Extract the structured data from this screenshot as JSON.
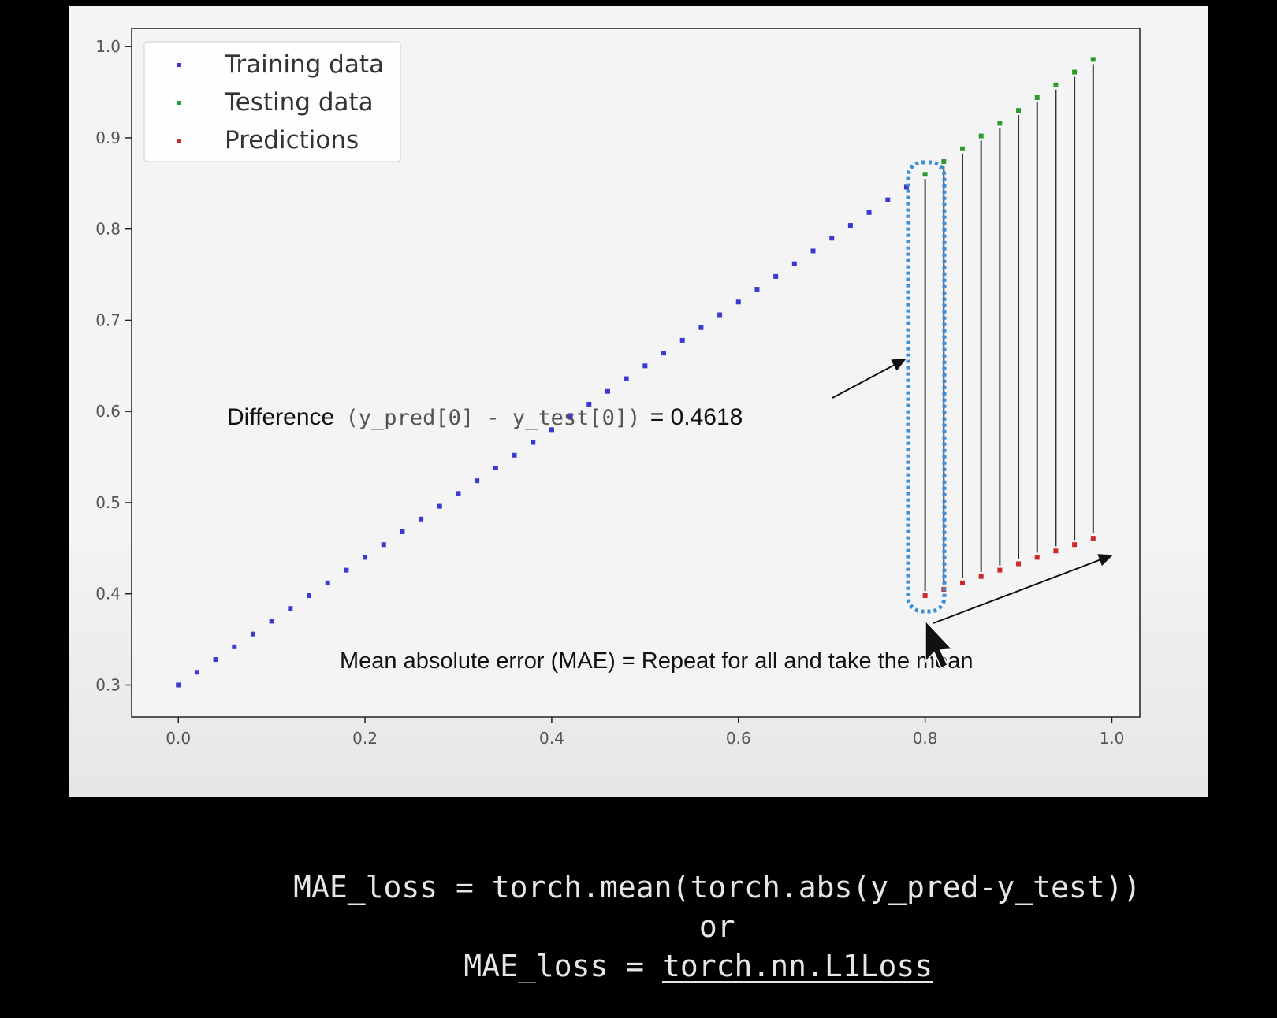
{
  "chart_data": {
    "type": "scatter",
    "xlim": [
      -0.05,
      1.03
    ],
    "ylim": [
      0.265,
      1.02
    ],
    "x_ticks": [
      "0.0",
      "0.2",
      "0.4",
      "0.6",
      "0.8",
      "1.0"
    ],
    "y_ticks": [
      "0.3",
      "0.4",
      "0.5",
      "0.6",
      "0.7",
      "0.8",
      "0.9",
      "1.0"
    ],
    "grid": false,
    "legend_position": "upper-left",
    "legend": [
      "Training data",
      "Testing data",
      "Predictions"
    ],
    "series": [
      {
        "name": "Training data",
        "color": "#3a3ad0",
        "x": [
          0.0,
          0.02,
          0.04,
          0.06,
          0.08,
          0.1,
          0.12,
          0.14,
          0.16,
          0.18,
          0.2,
          0.22,
          0.24,
          0.26,
          0.28,
          0.3,
          0.32,
          0.34,
          0.36,
          0.38,
          0.4,
          0.42,
          0.44,
          0.46,
          0.48,
          0.5,
          0.52,
          0.54,
          0.56,
          0.58,
          0.6,
          0.62,
          0.64,
          0.66,
          0.68,
          0.7,
          0.72,
          0.74,
          0.76,
          0.78
        ],
        "y": [
          0.3,
          0.314,
          0.328,
          0.342,
          0.356,
          0.37,
          0.384,
          0.398,
          0.412,
          0.426,
          0.44,
          0.454,
          0.468,
          0.482,
          0.496,
          0.51,
          0.524,
          0.538,
          0.552,
          0.566,
          0.58,
          0.594,
          0.608,
          0.622,
          0.636,
          0.65,
          0.664,
          0.678,
          0.692,
          0.706,
          0.72,
          0.734,
          0.748,
          0.762,
          0.776,
          0.79,
          0.804,
          0.818,
          0.832,
          0.846
        ]
      },
      {
        "name": "Testing data",
        "color": "#2e9a2e",
        "x": [
          0.8,
          0.82,
          0.84,
          0.86,
          0.88,
          0.9,
          0.92,
          0.94,
          0.96,
          0.98
        ],
        "y": [
          0.86,
          0.874,
          0.888,
          0.902,
          0.916,
          0.93,
          0.944,
          0.958,
          0.972,
          0.986
        ]
      },
      {
        "name": "Predictions",
        "color": "#cc2a2a",
        "x": [
          0.8,
          0.82,
          0.84,
          0.86,
          0.88,
          0.9,
          0.92,
          0.94,
          0.96,
          0.98
        ],
        "y": [
          0.398,
          0.405,
          0.412,
          0.419,
          0.426,
          0.433,
          0.44,
          0.447,
          0.454,
          0.461
        ]
      }
    ],
    "annotations": {
      "difference_label": "Difference",
      "difference_code": "(y_pred[0] - y_test[0])",
      "difference_value": "= 0.4618",
      "mae_text": "Mean absolute error (MAE) = Repeat for all and take the mean"
    }
  },
  "code": {
    "line1": "MAE_loss = torch.mean(torch.abs(y_pred-y_test))",
    "line2": "or",
    "line3_prefix": "MAE_loss = ",
    "line3_link": "torch.nn.L1Loss"
  },
  "colors": {
    "training": "#3a3ad0",
    "testing": "#2e9a2e",
    "predictions": "#cc2a2a",
    "highlight": "#3a90d8"
  }
}
